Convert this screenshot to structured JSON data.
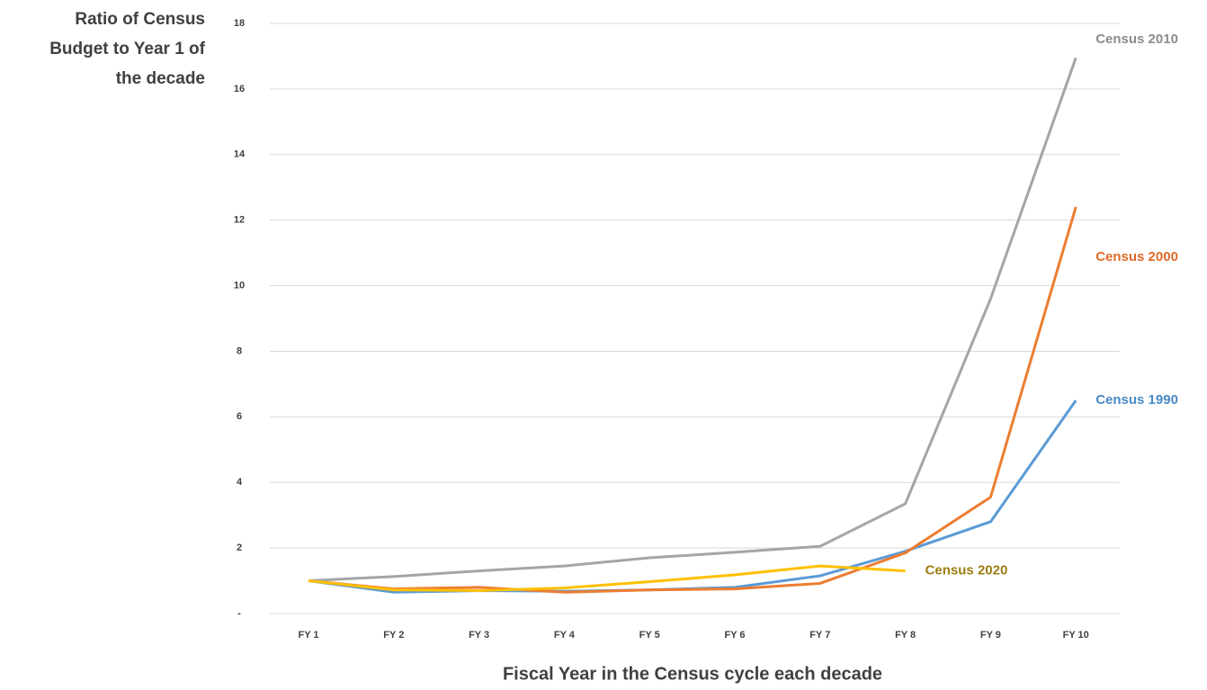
{
  "chart_data": {
    "type": "line",
    "ylabel": [
      "Ratio of Census",
      "Budget to Year 1 of",
      "the decade"
    ],
    "xlabel": "Fiscal Year in the Census cycle each decade",
    "categories": [
      "FY 1",
      "FY 2",
      "FY 3",
      "FY 4",
      "FY 5",
      "FY 6",
      "FY 7",
      "FY 8",
      "FY 9",
      "FY 10"
    ],
    "series": [
      {
        "name": "Census 1990",
        "color": "#5b9bd5",
        "label_color": "#4a8ac8",
        "values": [
          1.0,
          0.65,
          0.7,
          0.68,
          0.72,
          0.8,
          1.15,
          1.9,
          2.8,
          6.5
        ]
      },
      {
        "name": "Census 2000",
        "color": "#ed7d31",
        "label_color": "#e0692a",
        "values": [
          1.0,
          0.75,
          0.8,
          0.65,
          0.72,
          0.75,
          0.92,
          1.85,
          3.55,
          12.4
        ]
      },
      {
        "name": "Census 2010",
        "color": "#a5a5a5",
        "label_color": "#8c8c8c",
        "values": [
          1.0,
          1.13,
          1.3,
          1.45,
          1.7,
          1.87,
          2.05,
          3.35,
          9.6,
          16.95
        ]
      },
      {
        "name": "Census 2020",
        "color": "#ffc000",
        "label_color": "#9c7c10",
        "values": [
          1.0,
          0.72,
          0.7,
          0.78,
          0.97,
          1.18,
          1.45,
          1.3,
          null,
          null
        ]
      }
    ],
    "ylim": [
      0,
      18
    ],
    "yticks": [
      {
        "value": 0,
        "label": "-"
      },
      2,
      4,
      6,
      8,
      10,
      12,
      14,
      16,
      18
    ],
    "grid": true
  }
}
